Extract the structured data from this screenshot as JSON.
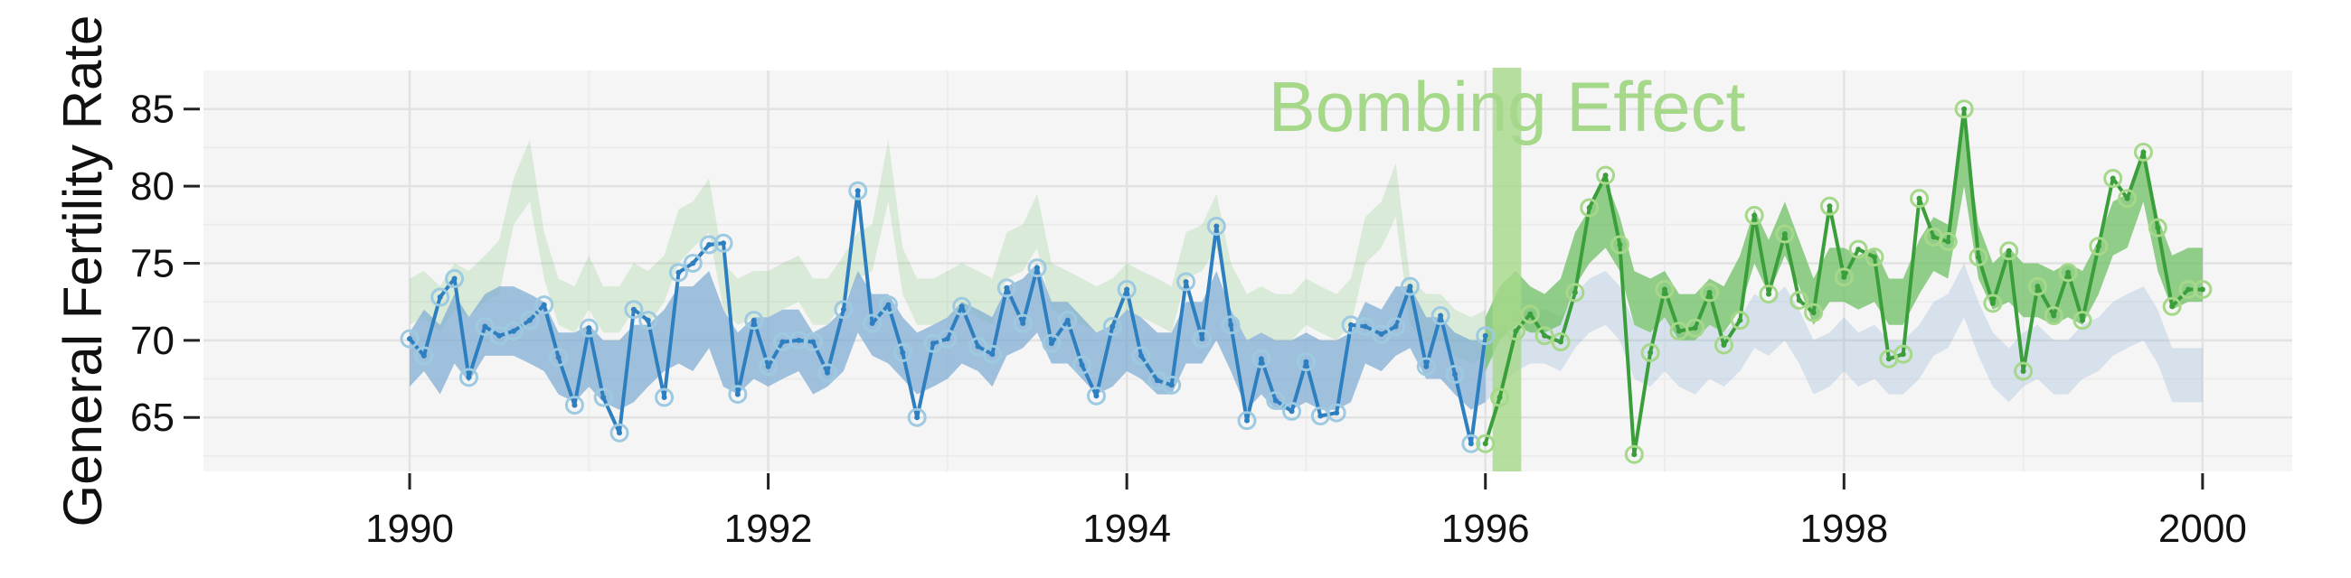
{
  "chart_data": {
    "type": "line",
    "title": "",
    "xlabel": "",
    "ylabel": "General Fertility Rate",
    "xlim": [
      1988.85,
      2000.5
    ],
    "ylim": [
      61.5,
      87.5
    ],
    "x_ticks": [
      1990,
      1992,
      1994,
      1996,
      1998,
      2000
    ],
    "y_ticks": [
      65,
      70,
      75,
      80,
      85
    ],
    "grid": true,
    "legend": "none",
    "annotations": [
      {
        "text": "Bombing Effect",
        "x_start": 1996.04,
        "x_end": 1996.2,
        "color": "#a6d88a"
      }
    ],
    "colors": {
      "pre_line": "#2e7fc0",
      "pre_marker": "#9ecae1",
      "pre_band": "#7ba9d3",
      "post_line": "#3a9f3a",
      "post_marker": "#a6d88a",
      "post_band": "#6cbf63",
      "background": "#f5f5f5",
      "grid_major": "#e2e2e2",
      "grid_minor": "#ececec"
    },
    "series": [
      {
        "name": "",
        "role": "pre",
        "x": [
          1990.0,
          1990.08,
          1990.17,
          1990.25,
          1990.33,
          1990.42,
          1990.5,
          1990.58,
          1990.67,
          1990.75,
          1990.83,
          1990.92,
          1991.0,
          1991.08,
          1991.17,
          1991.25,
          1991.33,
          1991.42,
          1991.5,
          1991.58,
          1991.67,
          1991.75,
          1991.83,
          1991.92,
          1992.0,
          1992.08,
          1992.17,
          1992.25,
          1992.33,
          1992.42,
          1992.5,
          1992.58,
          1992.67,
          1992.75,
          1992.83,
          1992.92,
          1993.0,
          1993.08,
          1993.17,
          1993.25,
          1993.33,
          1993.42,
          1993.5,
          1993.58,
          1993.67,
          1993.75,
          1993.83,
          1993.92,
          1994.0,
          1994.08,
          1994.17,
          1994.25,
          1994.33,
          1994.42,
          1994.5,
          1994.58,
          1994.67,
          1994.75,
          1994.83,
          1994.92,
          1995.0,
          1995.08,
          1995.17,
          1995.25,
          1995.33,
          1995.42,
          1995.5,
          1995.58,
          1995.67,
          1995.75,
          1995.83,
          1995.92,
          1996.0
        ],
        "y": [
          70.1,
          69.0,
          72.8,
          74.0,
          67.6,
          70.9,
          70.3,
          70.6,
          71.3,
          72.3,
          68.9,
          65.8,
          70.8,
          66.3,
          64.0,
          72.0,
          71.3,
          66.3,
          74.4,
          75.0,
          76.2,
          76.3,
          66.5,
          71.3,
          68.3,
          69.9,
          70.0,
          69.9,
          67.9,
          72.0,
          79.7,
          71.1,
          72.3,
          69.2,
          65.0,
          69.8,
          70.1,
          72.2,
          69.6,
          69.1,
          73.4,
          71.1,
          74.7,
          69.8,
          71.3,
          68.4,
          66.4,
          70.9,
          73.3,
          69.0,
          67.4,
          67.1,
          73.8,
          70.1,
          77.4,
          71.0,
          64.8,
          68.8,
          66.1,
          65.4,
          68.6,
          65.1,
          65.3,
          71.0,
          70.9,
          70.4,
          70.9,
          73.5,
          68.3,
          71.6,
          67.8,
          63.3,
          70.3
        ]
      },
      {
        "name": "",
        "role": "post",
        "x": [
          1996.0,
          1996.08,
          1996.17,
          1996.25,
          1996.33,
          1996.42,
          1996.5,
          1996.58,
          1996.67,
          1996.75,
          1996.83,
          1996.92,
          1997.0,
          1997.08,
          1997.17,
          1997.25,
          1997.33,
          1997.42,
          1997.5,
          1997.58,
          1997.67,
          1997.75,
          1997.83,
          1997.92,
          1998.0,
          1998.08,
          1998.17,
          1998.25,
          1998.33,
          1998.42,
          1998.5,
          1998.58,
          1998.67,
          1998.75,
          1998.83,
          1998.92,
          1999.0,
          1999.08,
          1999.17,
          1999.25,
          1999.33,
          1999.42,
          1999.5,
          1999.58,
          1999.67,
          1999.75,
          1999.83,
          1999.92,
          2000.0
        ],
        "y": [
          63.3,
          66.3,
          70.6,
          71.7,
          70.3,
          69.9,
          73.1,
          78.6,
          80.7,
          76.2,
          62.6,
          69.2,
          73.3,
          70.6,
          70.8,
          73.1,
          69.7,
          71.3,
          78.1,
          73.0,
          76.9,
          72.6,
          71.8,
          78.7,
          74.1,
          75.9,
          75.4,
          68.8,
          69.1,
          79.2,
          76.7,
          76.4,
          85.0,
          75.4,
          72.4,
          75.8,
          68.0,
          73.5,
          71.6,
          74.4,
          71.3,
          76.1,
          80.5,
          79.2,
          82.2,
          77.3,
          72.2,
          73.3,
          73.3
        ]
      }
    ],
    "bands": {
      "pre_fit": {
        "x": [
          1990.0,
          1990.08,
          1990.17,
          1990.25,
          1990.33,
          1990.42,
          1990.5,
          1990.58,
          1990.67,
          1990.75,
          1990.83,
          1990.92,
          1991.0,
          1991.08,
          1991.17,
          1991.25,
          1991.33,
          1991.42,
          1991.5,
          1991.58,
          1991.67,
          1991.75,
          1991.83,
          1991.92,
          1992.0,
          1992.08,
          1992.17,
          1992.25,
          1992.33,
          1992.42,
          1992.5,
          1992.58,
          1992.67,
          1992.75,
          1992.83,
          1992.92,
          1993.0,
          1993.08,
          1993.17,
          1993.25,
          1993.33,
          1993.42,
          1993.5,
          1993.58,
          1993.67,
          1993.75,
          1993.83,
          1993.92,
          1994.0,
          1994.08,
          1994.17,
          1994.25,
          1994.33,
          1994.42,
          1994.5,
          1994.58,
          1994.67,
          1994.75,
          1994.83,
          1994.92,
          1995.0,
          1995.08,
          1995.17,
          1995.25,
          1995.33,
          1995.42,
          1995.5,
          1995.58,
          1995.67,
          1995.75,
          1995.83,
          1995.92,
          1996.0
        ],
        "lower": [
          67.0,
          68.0,
          66.5,
          68.5,
          67.3,
          69.0,
          69.0,
          69.0,
          68.5,
          68.0,
          66.5,
          66.0,
          67.0,
          66.0,
          65.5,
          66.0,
          67.0,
          68.0,
          68.5,
          68.0,
          69.5,
          67.0,
          66.5,
          67.5,
          67.0,
          67.5,
          68.0,
          66.5,
          67.0,
          68.0,
          70.5,
          69.0,
          68.5,
          67.5,
          66.5,
          67.0,
          67.5,
          68.5,
          68.0,
          67.0,
          69.0,
          69.5,
          70.5,
          68.5,
          68.5,
          67.5,
          66.5,
          67.0,
          68.0,
          67.5,
          66.5,
          66.5,
          68.5,
          68.5,
          70.0,
          68.0,
          65.5,
          66.5,
          65.5,
          65.5,
          66.0,
          65.5,
          65.5,
          66.0,
          68.5,
          68.0,
          69.0,
          69.5,
          67.5,
          67.5,
          66.5,
          65.5,
          66.0
        ],
        "upper": [
          70.5,
          72.0,
          71.0,
          73.0,
          71.5,
          73.0,
          73.5,
          73.5,
          73.0,
          72.5,
          70.5,
          70.5,
          71.0,
          70.0,
          70.0,
          71.0,
          71.0,
          72.0,
          73.5,
          73.5,
          74.5,
          72.0,
          70.5,
          71.5,
          71.5,
          72.0,
          72.0,
          70.5,
          71.0,
          72.0,
          74.5,
          73.0,
          73.0,
          71.5,
          70.5,
          71.0,
          71.5,
          72.5,
          72.0,
          71.5,
          73.5,
          74.0,
          75.0,
          72.5,
          72.5,
          71.5,
          70.5,
          71.0,
          72.0,
          71.5,
          70.5,
          70.5,
          72.5,
          72.5,
          74.5,
          72.0,
          70.0,
          70.5,
          70.0,
          70.0,
          70.5,
          70.0,
          70.0,
          70.5,
          72.5,
          72.0,
          73.5,
          73.5,
          71.5,
          71.5,
          70.5,
          70.0,
          70.0
        ]
      },
      "post_fit": {
        "x": [
          1996.0,
          1996.08,
          1996.17,
          1996.25,
          1996.33,
          1996.42,
          1996.5,
          1996.58,
          1996.67,
          1996.75,
          1996.83,
          1996.92,
          1997.0,
          1997.08,
          1997.17,
          1997.25,
          1997.33,
          1997.42,
          1997.5,
          1997.58,
          1997.67,
          1997.75,
          1997.83,
          1997.92,
          1998.0,
          1998.08,
          1998.17,
          1998.25,
          1998.33,
          1998.42,
          1998.5,
          1998.58,
          1998.67,
          1998.75,
          1998.83,
          1998.92,
          1999.0,
          1999.08,
          1999.17,
          1999.25,
          1999.33,
          1999.42,
          1999.5,
          1999.58,
          1999.67,
          1999.75,
          1999.83,
          1999.92,
          2000.0
        ],
        "lower": [
          68.0,
          70.0,
          71.0,
          70.5,
          70.5,
          71.0,
          73.5,
          75.0,
          76.0,
          74.5,
          71.0,
          70.5,
          71.5,
          70.0,
          70.0,
          71.0,
          70.5,
          72.0,
          75.0,
          73.0,
          75.5,
          73.5,
          71.0,
          72.5,
          72.5,
          72.0,
          72.5,
          71.0,
          71.0,
          73.0,
          74.5,
          74.0,
          80.0,
          74.0,
          72.0,
          72.5,
          71.5,
          71.5,
          71.0,
          71.5,
          71.0,
          73.0,
          75.5,
          76.0,
          79.0,
          74.5,
          72.0,
          72.5,
          72.5
        ],
        "upper": [
          71.5,
          73.5,
          74.5,
          73.5,
          73.0,
          74.0,
          77.0,
          78.5,
          80.5,
          78.0,
          74.5,
          74.0,
          74.5,
          73.0,
          73.0,
          74.0,
          73.5,
          75.5,
          78.5,
          76.5,
          79.0,
          76.5,
          74.0,
          76.0,
          76.0,
          75.5,
          76.0,
          74.0,
          74.0,
          76.5,
          78.0,
          77.5,
          84.0,
          77.5,
          75.0,
          76.0,
          75.0,
          75.0,
          74.5,
          75.0,
          74.5,
          76.5,
          79.0,
          79.5,
          82.5,
          78.0,
          75.5,
          76.0,
          76.0
        ]
      },
      "green_ghost": {
        "x": [
          1990.0,
          1990.08,
          1990.17,
          1990.25,
          1990.33,
          1990.42,
          1990.5,
          1990.58,
          1990.67,
          1990.75,
          1990.83,
          1990.92,
          1991.0,
          1991.08,
          1991.17,
          1991.25,
          1991.33,
          1991.42,
          1991.5,
          1991.58,
          1991.67,
          1991.75,
          1991.83,
          1991.92,
          1992.0,
          1992.08,
          1992.17,
          1992.25,
          1992.33,
          1992.42,
          1992.5,
          1992.58,
          1992.67,
          1992.75,
          1992.83,
          1992.92,
          1993.0,
          1993.08,
          1993.17,
          1993.25,
          1993.33,
          1993.42,
          1993.5,
          1993.58,
          1993.67,
          1993.75,
          1993.83,
          1993.92,
          1994.0,
          1994.08,
          1994.17,
          1994.25,
          1994.33,
          1994.42,
          1994.5,
          1994.58,
          1994.67,
          1994.75,
          1994.83,
          1994.92,
          1995.0,
          1995.08,
          1995.17,
          1995.25,
          1995.33,
          1995.42,
          1995.5,
          1995.58,
          1995.67,
          1995.75,
          1995.83,
          1995.92,
          1996.0
        ],
        "lower": [
          71.0,
          71.5,
          70.5,
          72.0,
          71.5,
          72.5,
          73.0,
          77.5,
          79.0,
          74.0,
          71.0,
          70.5,
          72.0,
          70.5,
          70.5,
          72.0,
          71.0,
          72.5,
          75.0,
          76.0,
          77.0,
          72.0,
          71.0,
          71.5,
          71.5,
          72.0,
          72.5,
          71.0,
          71.0,
          72.5,
          74.0,
          74.5,
          79.0,
          73.0,
          71.0,
          71.0,
          71.5,
          72.0,
          71.5,
          71.0,
          74.0,
          74.5,
          76.0,
          72.0,
          71.5,
          71.0,
          70.5,
          71.0,
          72.0,
          71.5,
          71.0,
          70.5,
          74.0,
          74.5,
          76.0,
          72.0,
          70.0,
          70.5,
          70.0,
          70.0,
          71.0,
          70.5,
          70.0,
          71.0,
          75.0,
          76.0,
          78.0,
          71.0,
          70.0,
          70.0,
          69.0,
          68.5,
          69.0
        ],
        "upper": [
          74.0,
          74.5,
          73.5,
          75.0,
          74.5,
          75.5,
          76.5,
          80.5,
          83.0,
          77.0,
          74.0,
          73.5,
          75.5,
          73.5,
          73.5,
          75.0,
          74.5,
          75.5,
          78.5,
          79.0,
          80.5,
          75.0,
          74.0,
          74.5,
          74.5,
          75.0,
          75.5,
          74.0,
          74.0,
          75.5,
          77.0,
          77.5,
          83.0,
          76.0,
          74.0,
          74.0,
          74.5,
          75.0,
          74.5,
          74.0,
          77.0,
          77.5,
          79.5,
          75.0,
          74.5,
          74.0,
          73.5,
          74.0,
          75.0,
          74.5,
          74.0,
          73.5,
          77.0,
          77.5,
          79.5,
          75.0,
          73.0,
          73.5,
          73.0,
          73.0,
          74.0,
          73.5,
          73.0,
          74.0,
          78.0,
          79.0,
          81.5,
          74.0,
          73.0,
          73.0,
          72.0,
          71.5,
          72.0
        ]
      },
      "blue_ghost": {
        "x": [
          1996.0,
          1996.08,
          1996.17,
          1996.25,
          1996.33,
          1996.42,
          1996.5,
          1996.58,
          1996.67,
          1996.75,
          1996.83,
          1996.92,
          1997.0,
          1997.08,
          1997.17,
          1997.25,
          1997.33,
          1997.42,
          1997.5,
          1997.58,
          1997.67,
          1997.75,
          1997.83,
          1997.92,
          1998.0,
          1998.08,
          1998.17,
          1998.25,
          1998.33,
          1998.42,
          1998.5,
          1998.58,
          1998.67,
          1998.75,
          1998.83,
          1998.92,
          1999.0,
          1999.08,
          1999.17,
          1999.25,
          1999.33,
          1999.42,
          1999.5,
          1999.58,
          1999.67,
          1999.75,
          1999.83,
          1999.92,
          2000.0
        ],
        "lower": [
          66.0,
          67.0,
          68.0,
          68.5,
          68.5,
          68.0,
          69.5,
          70.5,
          71.0,
          70.0,
          67.5,
          67.0,
          68.0,
          67.0,
          66.5,
          67.5,
          67.0,
          68.0,
          69.5,
          69.0,
          70.0,
          68.5,
          66.5,
          67.0,
          68.0,
          67.0,
          67.5,
          66.5,
          66.5,
          67.5,
          69.0,
          69.5,
          71.5,
          69.0,
          67.0,
          66.0,
          67.0,
          67.5,
          66.5,
          66.5,
          67.5,
          68.0,
          69.0,
          69.5,
          70.0,
          68.5,
          66.0,
          66.0,
          66.0
        ],
        "upper": [
          69.5,
          70.5,
          71.5,
          72.0,
          72.0,
          71.5,
          73.0,
          74.0,
          74.5,
          73.5,
          71.0,
          70.5,
          71.5,
          70.5,
          70.0,
          71.0,
          70.5,
          71.5,
          73.0,
          72.5,
          73.5,
          72.0,
          70.0,
          70.5,
          71.5,
          70.5,
          71.0,
          70.0,
          70.0,
          71.0,
          72.5,
          73.0,
          75.0,
          72.5,
          70.5,
          69.5,
          70.5,
          71.0,
          70.0,
          70.0,
          71.0,
          71.5,
          72.5,
          73.0,
          73.5,
          72.0,
          69.5,
          69.5,
          69.5
        ]
      }
    }
  }
}
